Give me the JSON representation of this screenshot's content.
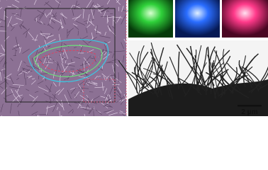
{
  "scale_bar": {
    "label": "2 μm"
  }
}
